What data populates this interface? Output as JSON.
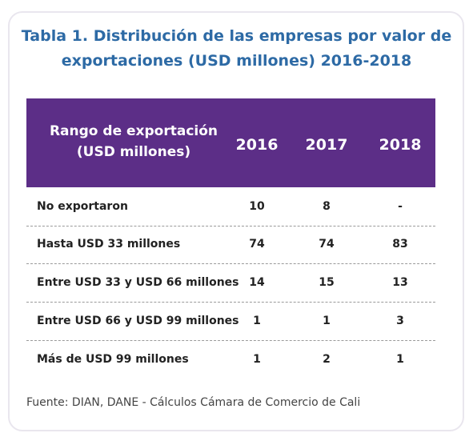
{
  "title": {
    "line1": "Tabla 1. Distribución de las empresas por valor de",
    "line2": "exportaciones (USD millones) 2016-2018"
  },
  "table": {
    "header": {
      "label_line1": "Rango de exportación",
      "label_line2": "(USD millones)",
      "years": [
        "2016",
        "2017",
        "2018"
      ]
    },
    "rows": [
      {
        "label": "No exportaron",
        "values": [
          "10",
          "8",
          "-"
        ]
      },
      {
        "label": "Hasta USD 33 millones",
        "values": [
          "74",
          "74",
          "83"
        ]
      },
      {
        "label": "Entre USD 33 y USD 66 millones",
        "values": [
          "14",
          "15",
          "13"
        ]
      },
      {
        "label": "Entre USD 66 y USD 99 millones",
        "values": [
          "1",
          "1",
          "3"
        ]
      },
      {
        "label": "Más de USD 99 millones",
        "values": [
          "1",
          "2",
          "1"
        ]
      }
    ]
  },
  "source": "Fuente: DIAN, DANE - Cálculos Cámara de Comercio de Cali",
  "colors": {
    "title": "#2d6aa5",
    "header_bg": "#5c2e87",
    "header_text": "#ffffff",
    "frame_border": "#e9e6ee"
  }
}
